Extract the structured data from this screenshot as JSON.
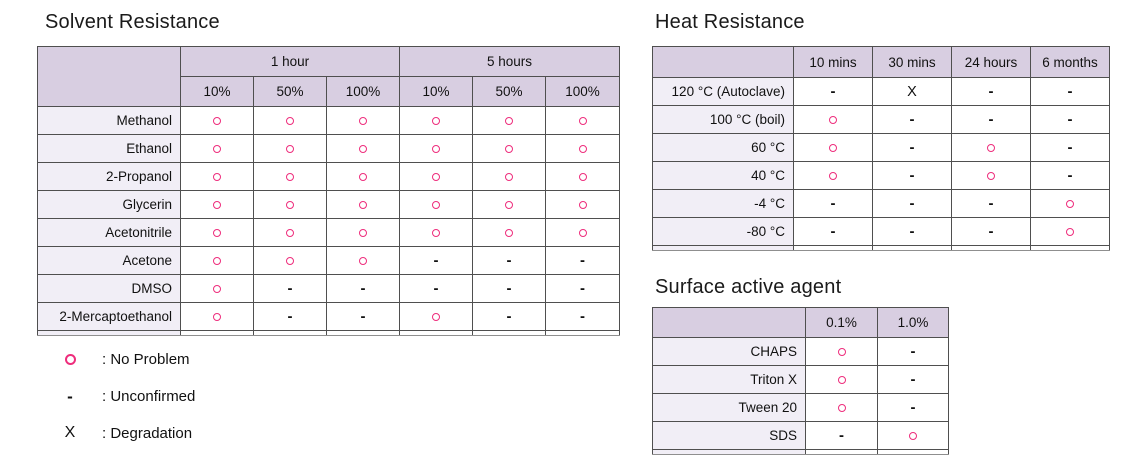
{
  "page": {
    "background": "#ffffff",
    "text_color": "#111111"
  },
  "colors": {
    "header_bg": "#d8cee1",
    "row_label_bg": "#f1eef6",
    "border": "#4f4f4f",
    "marker_pink": "#ee2d7c",
    "marker_black": "#111111"
  },
  "solvent_table": {
    "title": "Solvent Resistance",
    "header_groups": [
      {
        "label": "1 hour",
        "span": 3
      },
      {
        "label": "5 hours",
        "span": 3
      }
    ],
    "columns": [
      "10%",
      "50%",
      "100%",
      "10%",
      "50%",
      "100%"
    ],
    "rows": [
      {
        "label": "Methanol",
        "values": [
          "O",
          "O",
          "O",
          "O",
          "O",
          "O"
        ]
      },
      {
        "label": "Ethanol",
        "values": [
          "O",
          "O",
          "O",
          "O",
          "O",
          "O"
        ]
      },
      {
        "label": "2-Propanol",
        "values": [
          "O",
          "O",
          "O",
          "O",
          "O",
          "O"
        ]
      },
      {
        "label": "Glycerin",
        "values": [
          "O",
          "O",
          "O",
          "O",
          "O",
          "O"
        ]
      },
      {
        "label": "Acetonitrile",
        "values": [
          "O",
          "O",
          "O",
          "O",
          "O",
          "O"
        ]
      },
      {
        "label": "Acetone",
        "values": [
          "O",
          "O",
          "O",
          "-",
          "-",
          "-"
        ]
      },
      {
        "label": "DMSO",
        "values": [
          "O",
          "-",
          "-",
          "-",
          "-",
          "-"
        ]
      },
      {
        "label": "2-Mercaptoethanol",
        "values": [
          "O",
          "-",
          "-",
          "O",
          "-",
          "-"
        ]
      }
    ]
  },
  "heat_table": {
    "title": "Heat Resistance",
    "columns": [
      "10 mins",
      "30 mins",
      "24 hours",
      "6 months"
    ],
    "rows": [
      {
        "label": "120 °C (Autoclave)",
        "values": [
          "-",
          "X",
          "-",
          "-"
        ]
      },
      {
        "label": "100 °C (boil)",
        "values": [
          "O",
          "-",
          "-",
          "-"
        ]
      },
      {
        "label": "60 °C",
        "values": [
          "O",
          "-",
          "O",
          "-"
        ]
      },
      {
        "label": "40 °C",
        "values": [
          "O",
          "-",
          "O",
          "-"
        ]
      },
      {
        "label": "-4 °C",
        "values": [
          "-",
          "-",
          "-",
          "O"
        ]
      },
      {
        "label": "-80 °C",
        "values": [
          "-",
          "-",
          "-",
          "O"
        ]
      }
    ]
  },
  "surface_table": {
    "title": "Surface active agent",
    "columns": [
      "0.1%",
      "1.0%"
    ],
    "rows": [
      {
        "label": "CHAPS",
        "values": [
          "O",
          "-"
        ]
      },
      {
        "label": "Triton X",
        "values": [
          "O",
          "-"
        ]
      },
      {
        "label": "Tween 20",
        "values": [
          "O",
          "-"
        ]
      },
      {
        "label": "SDS",
        "values": [
          "-",
          "O"
        ]
      }
    ]
  },
  "legend": {
    "items": [
      {
        "symbol": "circle",
        "text": ": No Problem"
      },
      {
        "symbol": "dash",
        "text": ": Unconfirmed"
      },
      {
        "symbol": "x",
        "text": ": Degradation"
      }
    ]
  }
}
